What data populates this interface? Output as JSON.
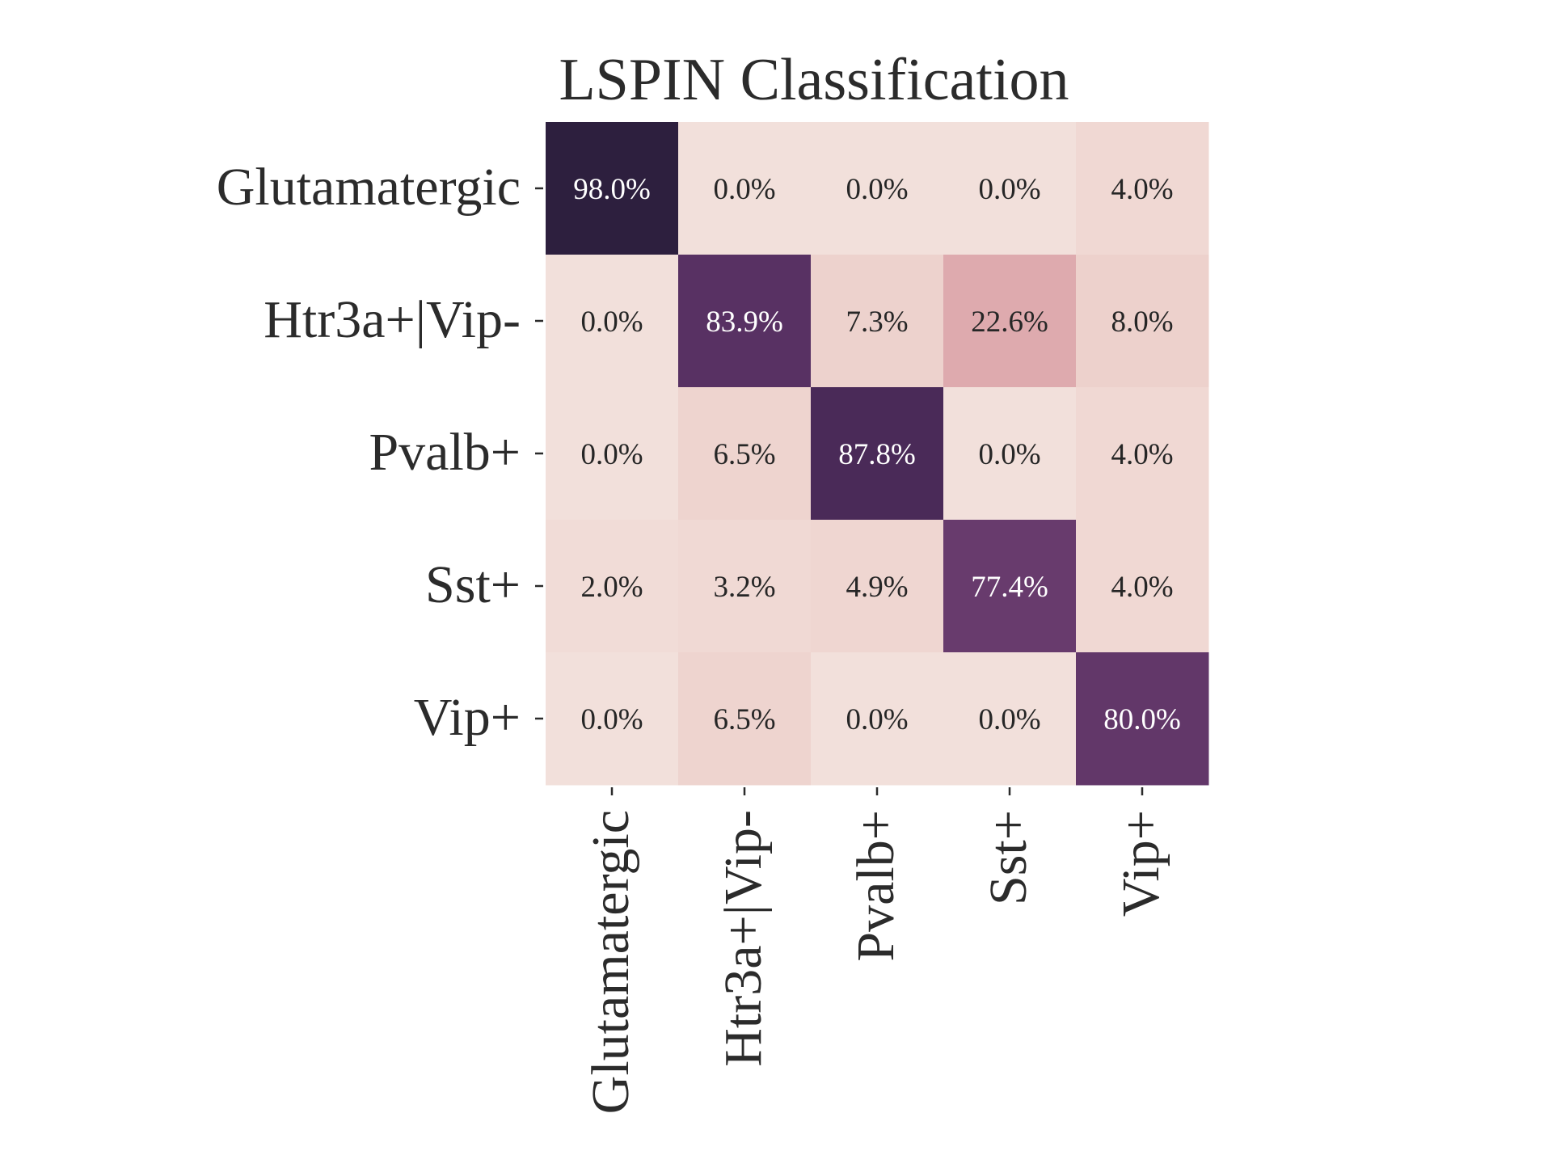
{
  "chart_data": {
    "type": "heatmap",
    "title": "LSPIN Classification",
    "rows": [
      "Glutamatergic",
      "Htr3a+|Vip-",
      "Pvalb+",
      "Sst+",
      "Vip+"
    ],
    "columns": [
      "Glutamatergic",
      "Htr3a+|Vip-",
      "Pvalb+",
      "Sst+",
      "Vip+"
    ],
    "values": [
      [
        98.0,
        0.0,
        0.0,
        0.0,
        4.0
      ],
      [
        0.0,
        83.9,
        7.3,
        22.6,
        8.0
      ],
      [
        0.0,
        6.5,
        87.8,
        0.0,
        4.0
      ],
      [
        2.0,
        3.2,
        4.9,
        77.4,
        4.0
      ],
      [
        0.0,
        6.5,
        0.0,
        0.0,
        80.0
      ]
    ],
    "value_format": "percent_1dp",
    "color_range": [
      0,
      98
    ],
    "colormap": "cubehelix-light-pink-to-dark-purple",
    "colorbar": false,
    "grid": false
  }
}
